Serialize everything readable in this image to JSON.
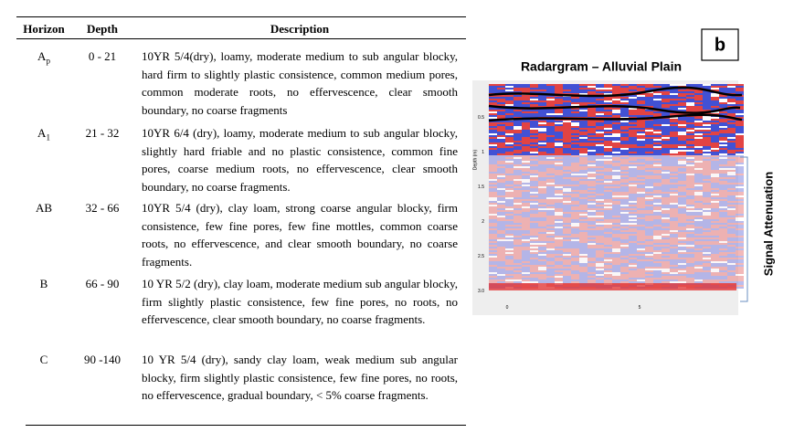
{
  "table": {
    "headers": [
      "Horizon",
      "Depth",
      "Description"
    ],
    "rows": [
      [
        {
          "main": "A",
          "sub": "p"
        },
        "0 - 21",
        "10YR 5/4(dry), loamy, moderate medium to sub angular blocky, hard firm to slightly plastic consistence, common medium pores, common moderate roots, no effervescence, clear smooth boundary, no coarse fragments"
      ],
      [
        {
          "main": "A",
          "sub": "1"
        },
        "21 - 32",
        "10YR 6/4 (dry), loamy, moderate medium to sub angular blocky, slightly hard friable and no plastic consistence, common fine pores, coarse medium roots, no effervescence, clear smooth boundary, no coarse fragments."
      ],
      [
        {
          "main": "AB"
        },
        "32 - 66",
        "10YR 5/4 (dry), clay loam, strong coarse angular blocky, firm consistence, few fine pores, few fine mottles, common coarse roots, no effervescence, and clear smooth boundary, no coarse fragments."
      ],
      [
        {
          "main": "B"
        },
        "66 - 90",
        "10 YR 5/2 (dry), clay loam, moderate medium sub angular blocky, firm slightly plastic consistence, few fine pores, no roots, no effervescence, clear smooth boundary, no coarse fragments."
      ],
      [
        {
          "main": "C"
        },
        "90 -140",
        "10 YR 5/4 (dry), sandy clay loam, weak medium sub angular blocky, firm slightly plastic consistence, few fine pores, no roots, no effervescence, gradual boundary, < 5% coarse fragments."
      ]
    ]
  },
  "figure": {
    "panel_label": "b",
    "title": "Radargram – Alluvial Plain",
    "side_label": "Signal Attenuation",
    "y_axis_label": "Depth (m)",
    "y_ticks": [
      "0.5",
      "1",
      "1.5",
      "2",
      "2.5",
      "3.0"
    ],
    "x_ticks": [
      "0",
      "5"
    ]
  }
}
